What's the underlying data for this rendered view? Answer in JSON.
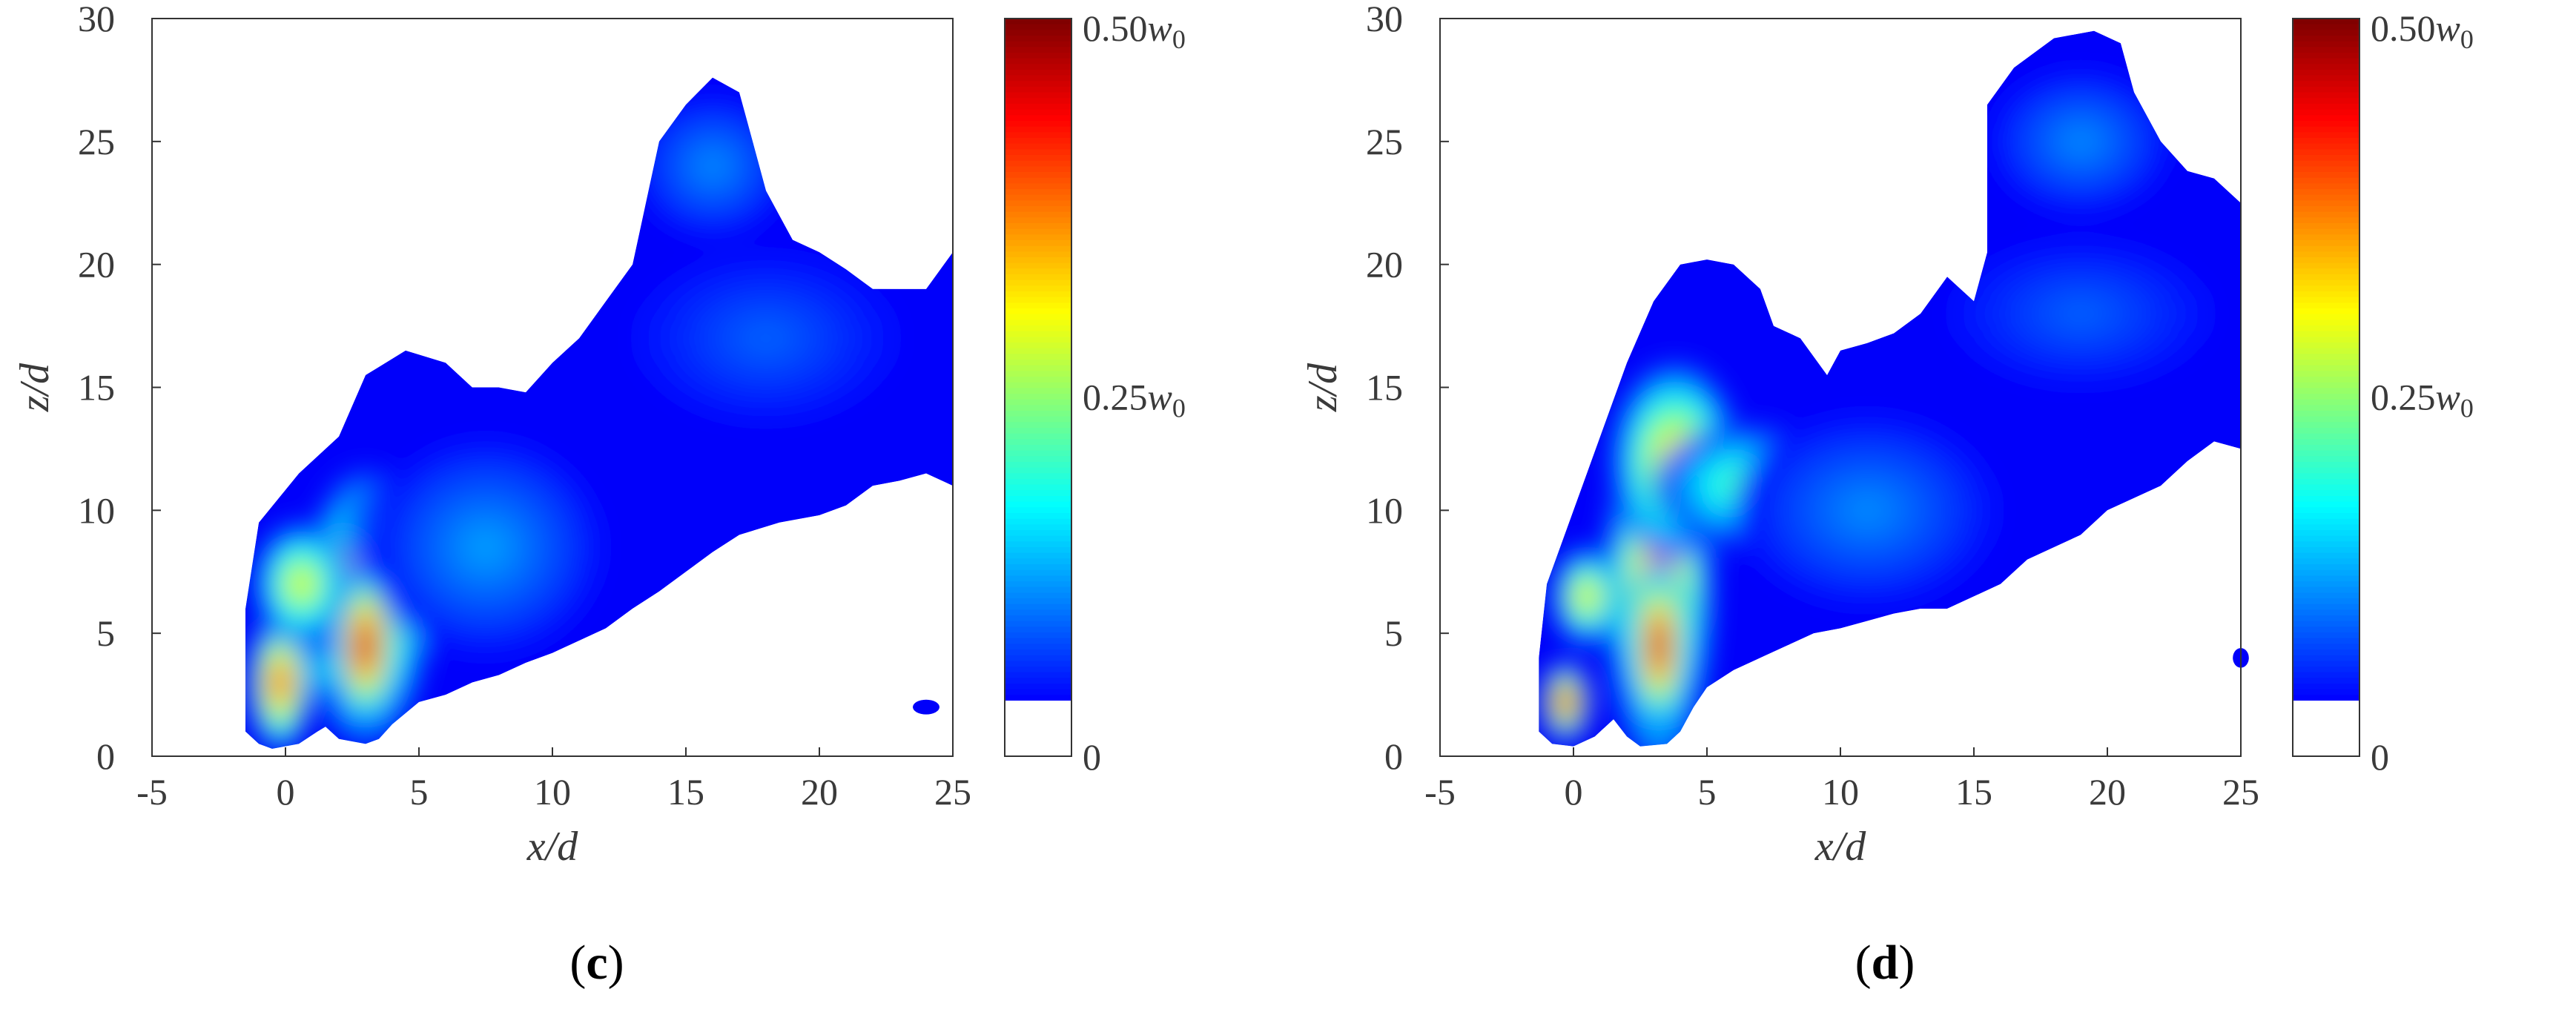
{
  "chart_data": [
    {
      "type": "heatmap",
      "panel_label": "c",
      "xlabel": "x/d",
      "ylabel": "z/d",
      "xlim": [
        -5,
        25
      ],
      "ylim": [
        0,
        30
      ],
      "xticks": [
        "-5",
        "0",
        "5",
        "10",
        "15",
        "20",
        "25"
      ],
      "yticks": [
        "0",
        "5",
        "10",
        "15",
        "20",
        "25",
        "30"
      ],
      "colorbar": {
        "labels": [
          "0.50w0",
          "0.25w0",
          "0"
        ],
        "colormap": "jet",
        "threshold_fraction": 0.08
      },
      "boundary": [
        [
          -1.5,
          1.0
        ],
        [
          -1.5,
          3.0
        ],
        [
          -1.5,
          6.0
        ],
        [
          -1.0,
          9.5
        ],
        [
          0.5,
          11.5
        ],
        [
          2.0,
          13.0
        ],
        [
          3.0,
          15.5
        ],
        [
          4.5,
          16.5
        ],
        [
          6.0,
          16.0
        ],
        [
          7.0,
          15.0
        ],
        [
          8.0,
          15.0
        ],
        [
          9.0,
          14.8
        ],
        [
          10.0,
          16.0
        ],
        [
          11.0,
          17.0
        ],
        [
          12.0,
          18.5
        ],
        [
          13.0,
          20.0
        ],
        [
          13.5,
          22.5
        ],
        [
          14.0,
          25.0
        ],
        [
          15.0,
          26.5
        ],
        [
          16.0,
          27.6
        ],
        [
          17.0,
          27.0
        ],
        [
          17.5,
          25.0
        ],
        [
          18.0,
          23.0
        ],
        [
          19.0,
          21.0
        ],
        [
          20.0,
          20.5
        ],
        [
          21.0,
          19.8
        ],
        [
          22.0,
          19.0
        ],
        [
          23.0,
          19.0
        ],
        [
          24.0,
          19.0
        ],
        [
          25.0,
          20.5
        ],
        [
          25.0,
          11.0
        ],
        [
          24.0,
          11.5
        ],
        [
          23.0,
          11.2
        ],
        [
          22.0,
          11.0
        ],
        [
          21.0,
          10.2
        ],
        [
          20.0,
          9.8
        ],
        [
          18.5,
          9.5
        ],
        [
          17.0,
          9.0
        ],
        [
          16.0,
          8.3
        ],
        [
          15.0,
          7.5
        ],
        [
          14.0,
          6.7
        ],
        [
          13.0,
          6.0
        ],
        [
          12.0,
          5.2
        ],
        [
          11.0,
          4.7
        ],
        [
          10.0,
          4.2
        ],
        [
          9.0,
          3.8
        ],
        [
          8.0,
          3.3
        ],
        [
          7.0,
          3.0
        ],
        [
          6.0,
          2.5
        ],
        [
          5.0,
          2.2
        ],
        [
          4.0,
          1.3
        ],
        [
          3.5,
          0.7
        ],
        [
          3.0,
          0.5
        ],
        [
          2.0,
          0.7
        ],
        [
          1.5,
          1.2
        ],
        [
          1.2,
          1.0
        ],
        [
          0.5,
          0.5
        ],
        [
          -0.5,
          0.3
        ],
        [
          -1.0,
          0.5
        ]
      ],
      "blobs": [
        {
          "x": 3.0,
          "z": 6.0,
          "rx": 2.3,
          "rz": 5.6,
          "level": 0.42
        },
        {
          "x": 3.0,
          "z": 4.5,
          "rx": 1.2,
          "rz": 3.3,
          "level": 0.5
        },
        {
          "x": -0.2,
          "z": 3.0,
          "rx": 1.2,
          "rz": 2.8,
          "level": 0.44
        },
        {
          "x": 0.6,
          "z": 7.0,
          "rx": 1.8,
          "rz": 2.5,
          "level": 0.32
        },
        {
          "x": 1.6,
          "z": 3.5,
          "rx": 0.6,
          "rz": 1.5,
          "level": 0.22
        },
        {
          "x": 4.8,
          "z": 9.0,
          "rx": 2.6,
          "rz": 2.5,
          "level": 0.22
        },
        {
          "x": 7.5,
          "z": 8.5,
          "rx": 4.5,
          "rz": 4.5,
          "level": 0.14
        },
        {
          "x": 16.0,
          "z": 24.0,
          "rx": 3.0,
          "rz": 3.0,
          "level": 0.13
        },
        {
          "x": 18.0,
          "z": 17.0,
          "rx": 5.0,
          "rz": 3.5,
          "level": 0.11
        }
      ],
      "islands": [
        {
          "x": 24.0,
          "z": 2.0,
          "rx": 0.5,
          "rz": 0.3
        }
      ]
    },
    {
      "type": "heatmap",
      "panel_label": "d",
      "xlabel": "x/d",
      "ylabel": "z/d",
      "xlim": [
        -5,
        25
      ],
      "ylim": [
        0,
        30
      ],
      "xticks": [
        "-5",
        "0",
        "5",
        "10",
        "15",
        "20",
        "25"
      ],
      "yticks": [
        "0",
        "5",
        "10",
        "15",
        "20",
        "25",
        "30"
      ],
      "colorbar": {
        "labels": [
          "0.50w0",
          "0.25w0",
          "0"
        ],
        "colormap": "jet",
        "threshold_fraction": 0.08
      },
      "boundary": [
        [
          -1.3,
          1.0
        ],
        [
          -1.3,
          4.0
        ],
        [
          -1.0,
          7.0
        ],
        [
          0.0,
          10.0
        ],
        [
          1.0,
          13.0
        ],
        [
          2.0,
          16.0
        ],
        [
          3.0,
          18.5
        ],
        [
          4.0,
          20.0
        ],
        [
          5.0,
          20.2
        ],
        [
          6.0,
          20.0
        ],
        [
          7.0,
          19.0
        ],
        [
          7.5,
          17.5
        ],
        [
          8.5,
          17.0
        ],
        [
          9.5,
          15.5
        ],
        [
          10.0,
          16.5
        ],
        [
          11.0,
          16.8
        ],
        [
          12.0,
          17.2
        ],
        [
          13.0,
          18.0
        ],
        [
          14.0,
          19.5
        ],
        [
          15.0,
          18.5
        ],
        [
          15.5,
          20.5
        ],
        [
          15.5,
          24.0
        ],
        [
          15.5,
          26.5
        ],
        [
          16.5,
          28.0
        ],
        [
          18.0,
          29.2
        ],
        [
          19.5,
          29.5
        ],
        [
          20.5,
          29.0
        ],
        [
          21.0,
          27.0
        ],
        [
          22.0,
          25.0
        ],
        [
          23.0,
          23.8
        ],
        [
          24.0,
          23.5
        ],
        [
          25.0,
          22.5
        ],
        [
          25.0,
          12.5
        ],
        [
          24.0,
          12.8
        ],
        [
          23.0,
          12.0
        ],
        [
          22.0,
          11.0
        ],
        [
          21.0,
          10.5
        ],
        [
          20.0,
          10.0
        ],
        [
          19.0,
          9.0
        ],
        [
          18.0,
          8.5
        ],
        [
          17.0,
          8.0
        ],
        [
          16.0,
          7.0
        ],
        [
          15.0,
          6.5
        ],
        [
          14.0,
          6.0
        ],
        [
          13.0,
          6.0
        ],
        [
          12.0,
          5.8
        ],
        [
          11.0,
          5.5
        ],
        [
          10.0,
          5.2
        ],
        [
          9.0,
          5.0
        ],
        [
          8.0,
          4.5
        ],
        [
          7.0,
          4.0
        ],
        [
          6.0,
          3.5
        ],
        [
          5.0,
          2.8
        ],
        [
          4.5,
          2.0
        ],
        [
          4.0,
          1.0
        ],
        [
          3.5,
          0.5
        ],
        [
          2.5,
          0.4
        ],
        [
          2.0,
          0.8
        ],
        [
          1.5,
          1.5
        ],
        [
          1.2,
          1.2
        ],
        [
          0.8,
          0.8
        ],
        [
          0.0,
          0.4
        ],
        [
          -0.8,
          0.5
        ]
      ],
      "blobs": [
        {
          "x": 3.2,
          "z": 7.0,
          "rx": 2.0,
          "rz": 7.5,
          "level": 0.42
        },
        {
          "x": 3.2,
          "z": 4.5,
          "rx": 1.1,
          "rz": 3.5,
          "level": 0.5
        },
        {
          "x": 3.8,
          "z": 12.0,
          "rx": 2.4,
          "rz": 4.0,
          "level": 0.36
        },
        {
          "x": -0.3,
          "z": 2.2,
          "rx": 0.9,
          "rz": 1.6,
          "level": 0.5
        },
        {
          "x": 0.5,
          "z": 6.5,
          "rx": 1.3,
          "rz": 2.0,
          "level": 0.34
        },
        {
          "x": 6.5,
          "z": 11.0,
          "rx": 3.5,
          "rz": 2.5,
          "level": 0.25
        },
        {
          "x": 9.5,
          "z": 11.0,
          "rx": 1.5,
          "rz": 1.2,
          "level": 0.22
        },
        {
          "x": 11.0,
          "z": 10.0,
          "rx": 5.0,
          "rz": 4.0,
          "level": 0.13
        },
        {
          "x": 19.0,
          "z": 25.0,
          "rx": 3.5,
          "rz": 3.0,
          "level": 0.13
        },
        {
          "x": 19.0,
          "z": 18.0,
          "rx": 5.0,
          "rz": 3.0,
          "level": 0.11
        }
      ],
      "islands": [
        {
          "x": 25.0,
          "z": 4.0,
          "rx": 0.3,
          "rz": 0.4
        }
      ]
    }
  ]
}
